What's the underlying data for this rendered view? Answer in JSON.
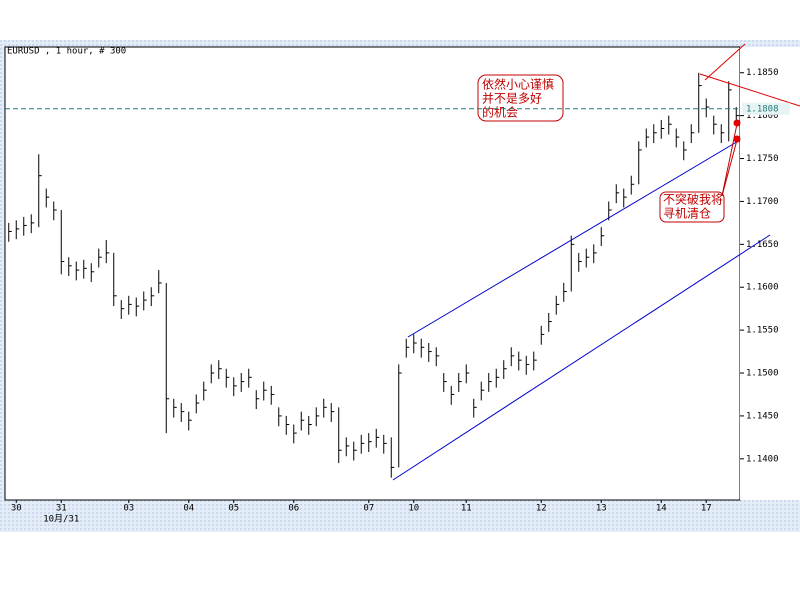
{
  "chart_data": {
    "type": "hlc",
    "title": "EURUSD , 1 hour, # 300",
    "categories": [
      null,
      "30",
      null,
      null,
      null,
      null,
      null,
      "31",
      null,
      null,
      null,
      null,
      null,
      null,
      null,
      null,
      "03",
      null,
      null,
      null,
      null,
      null,
      null,
      null,
      "04",
      null,
      null,
      null,
      null,
      null,
      "05",
      null,
      null,
      null,
      null,
      null,
      null,
      null,
      "06",
      null,
      null,
      null,
      null,
      null,
      null,
      null,
      null,
      null,
      "07",
      null,
      null,
      null,
      null,
      null,
      "10",
      null,
      null,
      null,
      null,
      null,
      null,
      "11",
      null,
      null,
      null,
      null,
      null,
      null,
      null,
      null,
      null,
      "12",
      null,
      null,
      null,
      null,
      null,
      null,
      null,
      "13",
      null,
      null,
      null,
      null,
      null,
      null,
      null,
      "14",
      null,
      null,
      null,
      null,
      null,
      "17",
      null,
      null,
      null,
      null
    ],
    "x_sublabel": "10月/31",
    "high": [
      1.1675,
      1.1678,
      1.1682,
      1.1685,
      1.1755,
      1.1715,
      1.17,
      1.169,
      1.1635,
      1.163,
      1.1632,
      1.1628,
      1.1645,
      1.1655,
      1.164,
      1.1585,
      1.159,
      1.1588,
      1.1595,
      1.16,
      1.162,
      1.1605,
      1.147,
      1.1465,
      1.1455,
      1.1475,
      1.149,
      1.151,
      1.1515,
      1.1505,
      1.1495,
      1.15,
      1.1505,
      1.148,
      1.149,
      1.1485,
      1.146,
      1.145,
      1.144,
      1.1455,
      1.145,
      1.146,
      1.147,
      1.1465,
      1.146,
      1.1425,
      1.142,
      1.1428,
      1.143,
      1.1435,
      1.1428,
      1.1425,
      1.151,
      1.154,
      1.1545,
      1.154,
      1.1535,
      1.153,
      1.15,
      1.1485,
      1.15,
      1.151,
      1.147,
      1.149,
      1.15,
      1.1505,
      1.1515,
      1.153,
      1.1525,
      1.152,
      1.1525,
      1.1555,
      1.157,
      1.159,
      1.1605,
      1.166,
      1.164,
      1.1645,
      1.165,
      1.167,
      1.17,
      1.172,
      1.1715,
      1.173,
      1.177,
      1.1785,
      1.179,
      1.1795,
      1.18,
      1.1785,
      1.177,
      1.179,
      1.185,
      1.182,
      1.18,
      1.179,
      1.184,
      1.181
    ],
    "low": [
      1.1653,
      1.1656,
      1.166,
      1.1663,
      1.167,
      1.1693,
      1.1678,
      1.1615,
      1.1613,
      1.1608,
      1.161,
      1.1606,
      1.1623,
      1.1628,
      1.1578,
      1.1563,
      1.1568,
      1.1566,
      1.1573,
      1.1578,
      1.1593,
      1.143,
      1.1448,
      1.1443,
      1.1433,
      1.1453,
      1.1468,
      1.1488,
      1.1493,
      1.1483,
      1.1473,
      1.1478,
      1.1483,
      1.1458,
      1.1468,
      1.1463,
      1.1438,
      1.1428,
      1.1418,
      1.1433,
      1.1428,
      1.1438,
      1.1448,
      1.1443,
      1.1395,
      1.1403,
      1.1398,
      1.1406,
      1.1408,
      1.1413,
      1.1406,
      1.1378,
      1.139,
      1.1518,
      1.1523,
      1.1518,
      1.1513,
      1.1508,
      1.1478,
      1.1463,
      1.1478,
      1.1488,
      1.1448,
      1.1468,
      1.1478,
      1.1483,
      1.1493,
      1.1508,
      1.1503,
      1.1498,
      1.1503,
      1.1533,
      1.1548,
      1.1568,
      1.1583,
      1.1595,
      1.1618,
      1.1623,
      1.1628,
      1.1648,
      1.1678,
      1.1698,
      1.1693,
      1.1708,
      1.172,
      1.1763,
      1.1768,
      1.1773,
      1.1778,
      1.1763,
      1.1748,
      1.1768,
      1.178,
      1.1798,
      1.1778,
      1.1768,
      1.177,
      1.1788
    ],
    "close": [
      1.1665,
      1.1668,
      1.1672,
      1.1675,
      1.173,
      1.1705,
      1.169,
      1.163,
      1.1625,
      1.162,
      1.1622,
      1.1618,
      1.1635,
      1.164,
      1.159,
      1.1575,
      1.158,
      1.1578,
      1.1585,
      1.159,
      1.1605,
      1.147,
      1.146,
      1.1455,
      1.1445,
      1.1465,
      1.148,
      1.15,
      1.1505,
      1.1495,
      1.1485,
      1.149,
      1.1495,
      1.147,
      1.148,
      1.1475,
      1.145,
      1.144,
      1.143,
      1.1445,
      1.144,
      1.145,
      1.146,
      1.1455,
      1.141,
      1.1415,
      1.141,
      1.1418,
      1.142,
      1.1425,
      1.1418,
      1.139,
      1.15,
      1.153,
      1.1535,
      1.153,
      1.1525,
      1.152,
      1.149,
      1.1475,
      1.149,
      1.15,
      1.146,
      1.148,
      1.149,
      1.1495,
      1.1505,
      1.152,
      1.1515,
      1.151,
      1.1515,
      1.1545,
      1.156,
      1.158,
      1.1595,
      1.165,
      1.163,
      1.1635,
      1.164,
      1.166,
      1.169,
      1.171,
      1.1705,
      1.172,
      1.176,
      1.1775,
      1.178,
      1.1785,
      1.179,
      1.1775,
      1.176,
      1.178,
      1.1835,
      1.181,
      1.179,
      1.178,
      1.183,
      1.18
    ],
    "color": "#000000",
    "current_price": 1.1808,
    "ylim": [
      1.1352,
      1.188
    ],
    "yticks": [
      {
        "value": 1.14,
        "label": "1.1400"
      },
      {
        "value": 1.145,
        "label": "1.1450"
      },
      {
        "value": 1.15,
        "label": "1.1500"
      },
      {
        "value": 1.155,
        "label": "1.1550"
      },
      {
        "value": 1.16,
        "label": "1.1600"
      },
      {
        "value": 1.165,
        "label": "1.1650"
      },
      {
        "value": 1.17,
        "label": "1.1700"
      },
      {
        "value": 1.175,
        "label": "1.1750"
      },
      {
        "value": 1.18,
        "label": "1.1800"
      },
      {
        "value": 1.185,
        "label": "1.1850"
      }
    ],
    "annotations": [
      {
        "lines": [
          "依然小心谨慎",
          "并不是多好",
          "的机会"
        ]
      },
      {
        "lines": [
          "不突破我将",
          "寻机清仓"
        ]
      }
    ]
  }
}
